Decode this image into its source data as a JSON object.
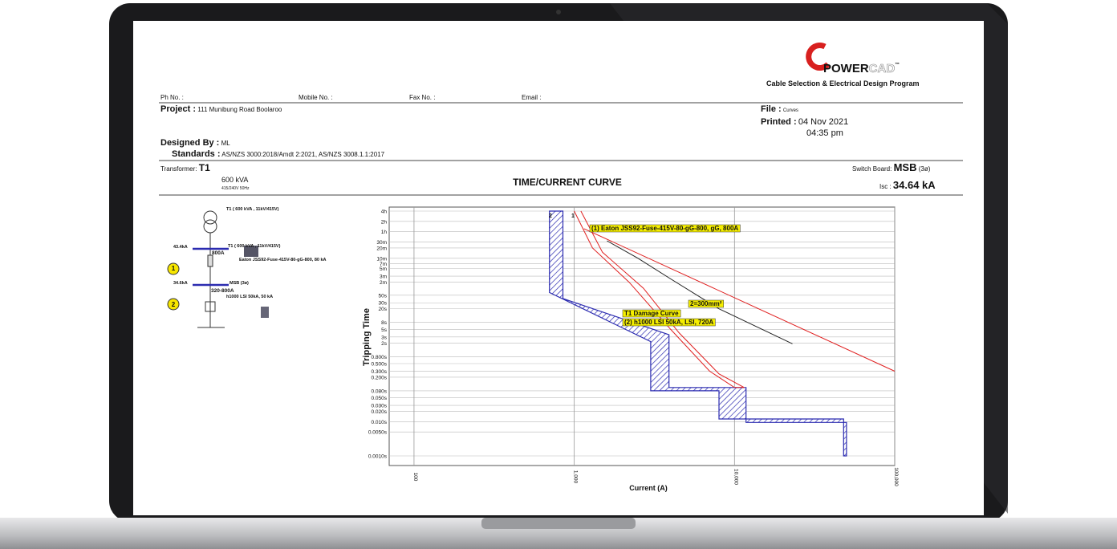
{
  "header": {
    "logo_power": "POWER",
    "logo_cad": "CAD",
    "logo_tm": "™",
    "tagline": "Cable Selection & Electrical Design Program",
    "ph_no": "Ph No. :",
    "mobile_no": "Mobile No. :",
    "fax_no": "Fax No. :",
    "email": "Email :",
    "project_label": "Project :",
    "project": "111 Munibung Road Boolaroo",
    "file_label": "File :",
    "file": "Curves",
    "printed_label": "Printed :",
    "printed_date": "04 Nov 2021",
    "printed_time": "04:35 pm",
    "designed_by_label": "Designed By :",
    "designed_by": "ML",
    "standards_label": "Standards :",
    "standards": "AS/NZS 3000:2018/Amdt 2:2021, AS/NZS 3008.1.1:2017",
    "transformer_label": "Transformer:",
    "transformer": "T1",
    "kva": "600 kVA",
    "voltage": "415/240V 50Hz",
    "switchboard_label": "Switch Board:",
    "switchboard": "MSB",
    "phase": "(3ø)",
    "isc_label": "Isc :",
    "isc": "34.64 kA"
  },
  "diagram": {
    "t1_top": "T1 ( 600 kVA , 11kV/415V)",
    "fault1": "43.4kA",
    "t1_bus": "T1 ( 600 kVA , 11kV/415V)",
    "fuse_rating": "800A",
    "fuse": "Eaton JSS92-Fuse-415V-80-gG-800, 80 kA",
    "badge1": "1",
    "fault2": "34.6kA",
    "msb": "MSB (3ø)",
    "breaker_rating": "320-800A",
    "breaker": "h1000 LSI 50kA, 50 kA",
    "badge2": "2"
  },
  "chart_data": {
    "type": "line",
    "title": "TIME/CURRENT CURVE",
    "x_label": "Current (A)",
    "y_label": "Tripping Time",
    "x_log": true,
    "y_log": true,
    "grid": true,
    "xlim": [
      70,
      100000
    ],
    "ylim": [
      0.001,
      14400
    ],
    "xticks": [
      100,
      {
        "value": 1000,
        "label": "1,000"
      },
      {
        "value": 10000,
        "label": "10,000"
      },
      {
        "value": 100000,
        "label": "100,000"
      }
    ],
    "yticks": [
      {
        "value": 14400,
        "label": "4h"
      },
      {
        "value": 7200,
        "label": "2h"
      },
      {
        "value": 3600,
        "label": "1h"
      },
      {
        "value": 1800,
        "label": "30m"
      },
      {
        "value": 1200,
        "label": "20m"
      },
      {
        "value": 600,
        "label": "10m"
      },
      {
        "value": 420,
        "label": "7m"
      },
      {
        "value": 300,
        "label": "5m"
      },
      {
        "value": 180,
        "label": "3m"
      },
      {
        "value": 120,
        "label": "2m"
      },
      {
        "value": 50,
        "label": "50s"
      },
      {
        "value": 30,
        "label": "30s"
      },
      {
        "value": 20,
        "label": "20s"
      },
      {
        "value": 8,
        "label": "8s"
      },
      {
        "value": 5,
        "label": "5s"
      },
      {
        "value": 3,
        "label": "3s"
      },
      {
        "value": 2,
        "label": "2s"
      },
      {
        "value": 0.8,
        "label": "0.800s"
      },
      {
        "value": 0.5,
        "label": "0.500s"
      },
      {
        "value": 0.3,
        "label": "0.300s"
      },
      {
        "value": 0.2,
        "label": "0.200s"
      },
      {
        "value": 0.08,
        "label": "0.080s"
      },
      {
        "value": 0.05,
        "label": "0.050s"
      },
      {
        "value": 0.03,
        "label": "0.030s"
      },
      {
        "value": 0.02,
        "label": "0.020s"
      },
      {
        "value": 0.01,
        "label": "0.010s"
      },
      {
        "value": 0.005,
        "label": "0.0050s"
      },
      {
        "value": 0.001,
        "label": "0.0010s"
      }
    ],
    "curve_markers": [
      "2",
      "1"
    ],
    "series": [
      {
        "name": "(2) h1000 LSI 50kA, LSI, 720A",
        "color": "#2b2bb0",
        "hatch": true,
        "x": [
          700,
          700,
          3000,
          3000,
          8000,
          8000,
          48000,
          48000,
          50000,
          50000,
          11800,
          11800,
          3900,
          3900,
          850,
          850
        ],
        "values": [
          14400,
          60,
          2.2,
          0.08,
          0.08,
          0.012,
          0.012,
          0.001,
          0.001,
          0.0095,
          0.0095,
          0.1,
          0.1,
          3.5,
          40,
          14400
        ]
      },
      {
        "name": "(1) Eaton JSS92-Fuse-415V-80-gG-800, gG, 800A",
        "color": "#e02020",
        "x": [
          1000,
          1300,
          2200,
          4000,
          7000,
          10000,
          11500,
          8000,
          4500,
          2700,
          1500,
          1100
        ],
        "values": [
          14400,
          1200,
          120,
          5,
          0.3,
          0.1,
          0.1,
          0.25,
          4,
          80,
          900,
          14400
        ]
      },
      {
        "name": "T1 Damage Curve",
        "color": "#e02020",
        "x": [
          1150,
          100000
        ],
        "values": [
          4400,
          0.3
        ]
      },
      {
        "name": "2=300mm²",
        "color": "#222222",
        "x": [
          1600,
          2500,
          4000,
          8000,
          23000
        ],
        "values": [
          1950,
          600,
          150,
          20,
          1.9
        ]
      }
    ]
  }
}
